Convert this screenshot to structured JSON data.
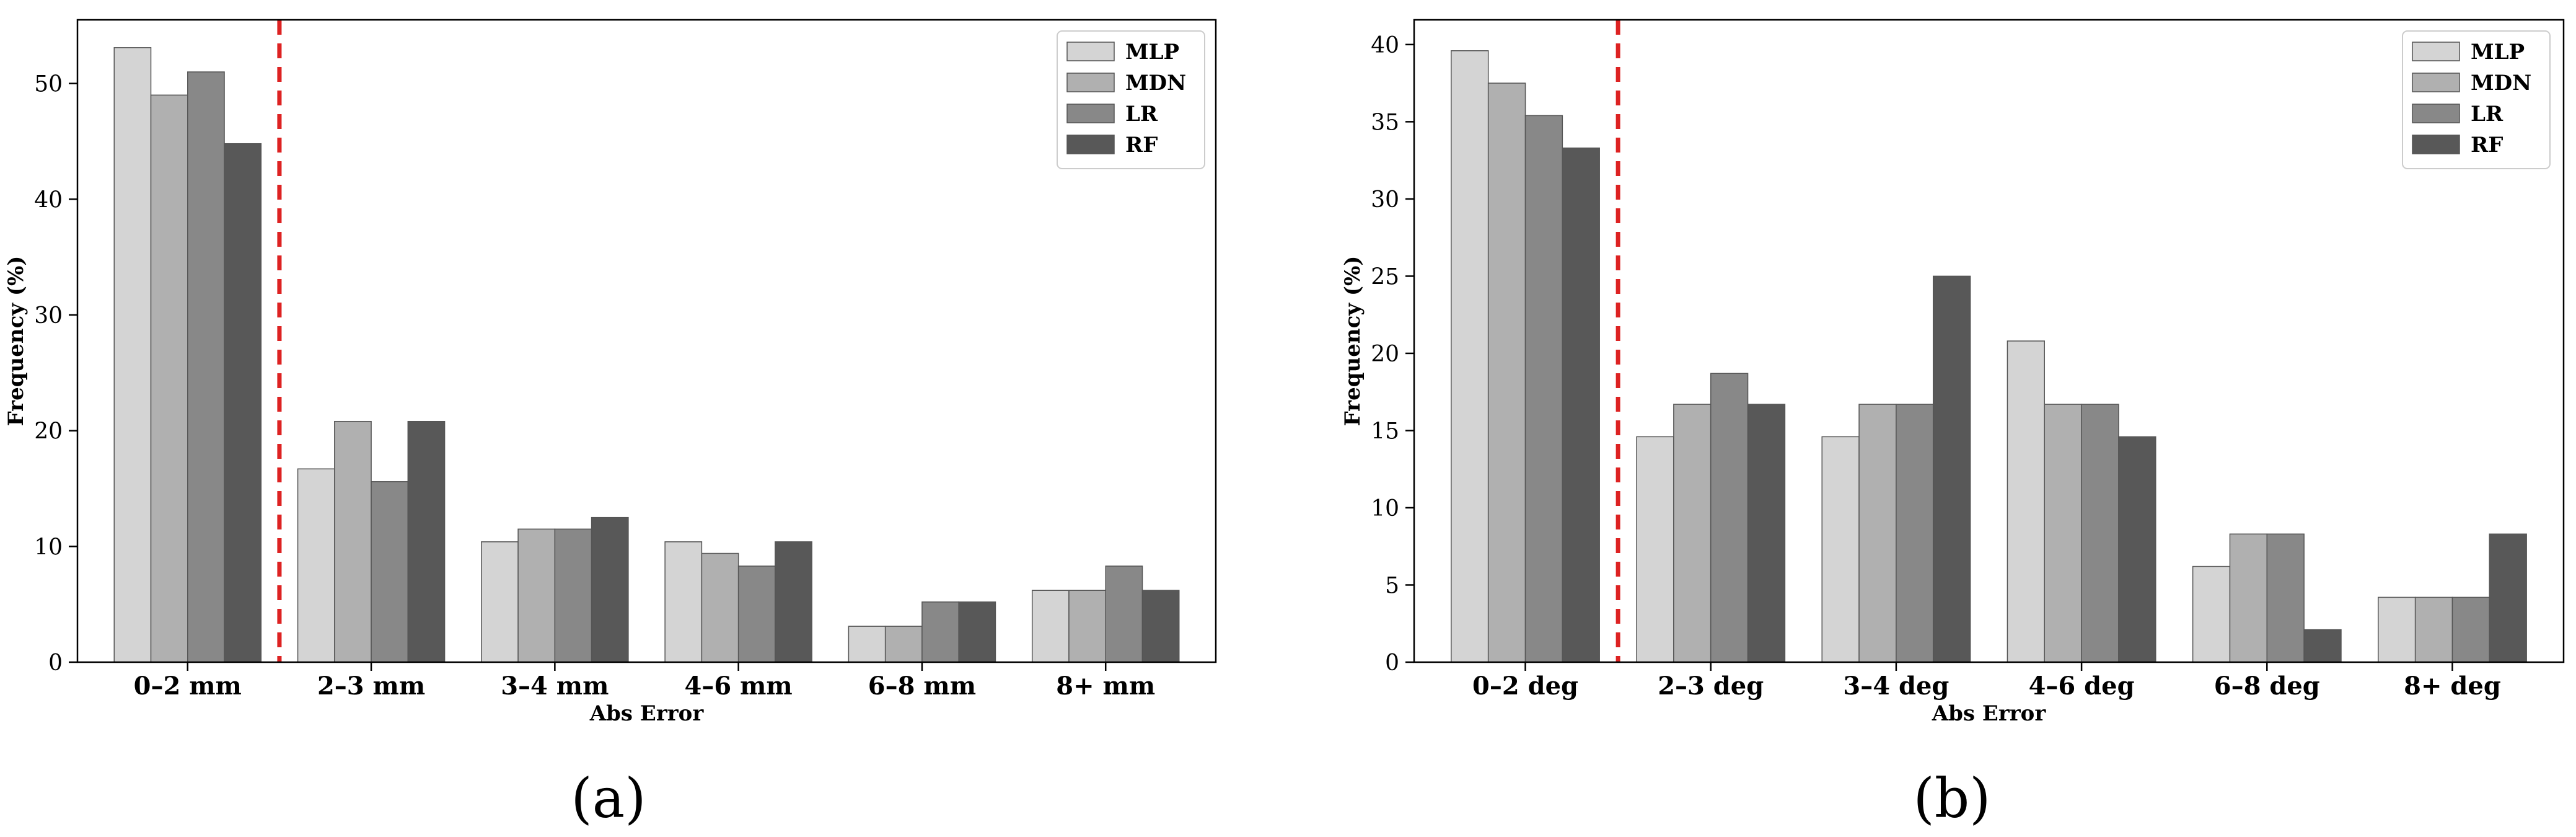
{
  "panel_labels": [
    "(a)",
    "(b)"
  ],
  "chart_data": [
    {
      "type": "bar",
      "panel": "(a)",
      "title": "",
      "xlabel": "Abs Error",
      "ylabel": "Frequency (%)",
      "ylim": [
        0,
        55.5
      ],
      "yticks": [
        0,
        10,
        20,
        30,
        40,
        50
      ],
      "grid": false,
      "legend_position": "top-right",
      "categories": [
        "0–2 mm",
        "2–3 mm",
        "3–4 mm",
        "4–6 mm",
        "6–8 mm",
        "8+ mm"
      ],
      "series": [
        {
          "name": "MLP",
          "color": "#d4d4d4",
          "values": [
            53.1,
            16.7,
            10.4,
            10.4,
            3.1,
            6.2
          ]
        },
        {
          "name": "MDN",
          "color": "#b0b0b0",
          "values": [
            49.0,
            20.8,
            11.5,
            9.4,
            3.1,
            6.2
          ]
        },
        {
          "name": "LR",
          "color": "#888888",
          "values": [
            51.0,
            15.6,
            11.5,
            8.3,
            5.2,
            8.3
          ]
        },
        {
          "name": "RF",
          "color": "#585858",
          "values": [
            44.8,
            20.8,
            12.5,
            10.4,
            5.2,
            6.2
          ]
        }
      ],
      "threshold_line": {
        "after_category_index": 0,
        "color": "#dd2222",
        "style": "dashed"
      }
    },
    {
      "type": "bar",
      "panel": "(b)",
      "title": "",
      "xlabel": "Abs Error",
      "ylabel": "Frequency (%)",
      "ylim": [
        0,
        41.6
      ],
      "yticks": [
        0,
        5,
        10,
        15,
        20,
        25,
        30,
        35,
        40
      ],
      "grid": false,
      "legend_position": "top-right",
      "categories": [
        "0–2 deg",
        "2–3 deg",
        "3–4 deg",
        "4–6 deg",
        "6–8 deg",
        "8+ deg"
      ],
      "series": [
        {
          "name": "MLP",
          "color": "#d4d4d4",
          "values": [
            39.6,
            14.6,
            14.6,
            20.8,
            6.2,
            4.2
          ]
        },
        {
          "name": "MDN",
          "color": "#b0b0b0",
          "values": [
            37.5,
            16.7,
            16.7,
            16.7,
            8.3,
            4.2
          ]
        },
        {
          "name": "LR",
          "color": "#888888",
          "values": [
            35.4,
            18.7,
            16.7,
            16.7,
            8.3,
            4.2
          ]
        },
        {
          "name": "RF",
          "color": "#585858",
          "values": [
            33.3,
            16.7,
            25.0,
            14.6,
            2.1,
            8.3
          ]
        }
      ],
      "threshold_line": {
        "after_category_index": 0,
        "color": "#dd2222",
        "style": "dashed"
      }
    }
  ]
}
